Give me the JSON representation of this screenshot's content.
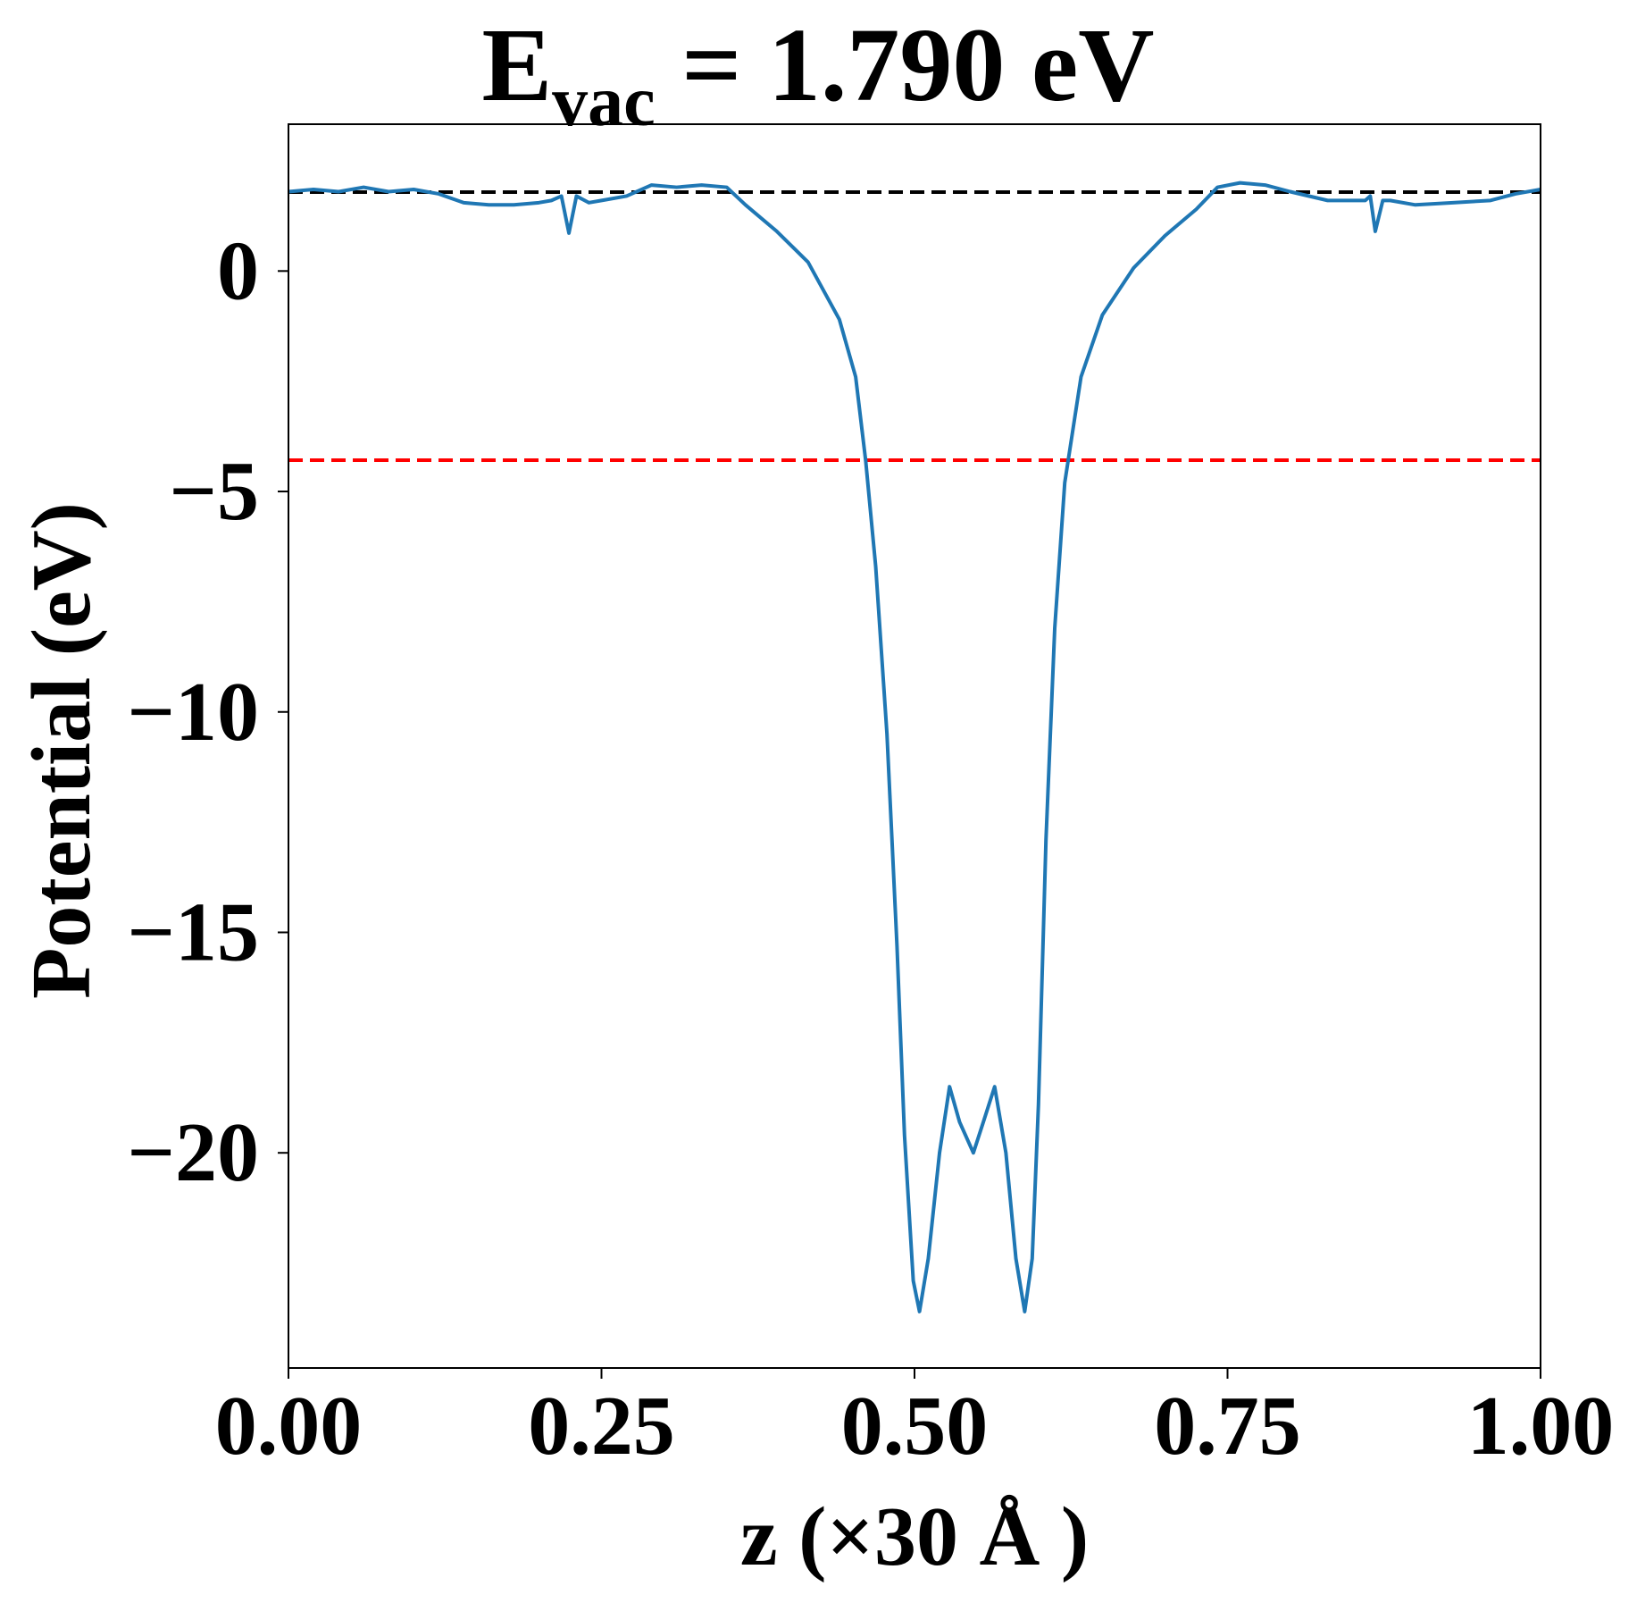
{
  "chart_data": {
    "type": "line",
    "title_parts": [
      "E",
      "vac",
      " = 1.790 eV"
    ],
    "xlabel": "z (×30 Å )",
    "ylabel": "Potential (eV)",
    "x": [
      0,
      0.02,
      0.04,
      0.06,
      0.08,
      0.1,
      0.12,
      0.14,
      0.16,
      0.18,
      0.2,
      0.21,
      0.218,
      0.224,
      0.23,
      0.24,
      0.25,
      0.27,
      0.29,
      0.31,
      0.33,
      0.35,
      0.365,
      0.39,
      0.415,
      0.44,
      0.453,
      0.461,
      0.469,
      0.478,
      0.486,
      0.492,
      0.499,
      0.504,
      0.511,
      0.52,
      0.528,
      0.536,
      0.547,
      0.555,
      0.564,
      0.573,
      0.581,
      0.588,
      0.594,
      0.599,
      0.605,
      0.612,
      0.62,
      0.633,
      0.65,
      0.675,
      0.7,
      0.725,
      0.742,
      0.76,
      0.78,
      0.8,
      0.83,
      0.86,
      0.864,
      0.868,
      0.874,
      0.88,
      0.9,
      0.93,
      0.96,
      0.98,
      1.0
    ],
    "series": [
      {
        "color": "#1f77b4",
        "values": [
          1.8,
          1.85,
          1.8,
          1.9,
          1.8,
          1.85,
          1.75,
          1.55,
          1.5,
          1.5,
          1.55,
          1.6,
          1.7,
          0.86,
          1.7,
          1.55,
          1.6,
          1.7,
          1.95,
          1.9,
          1.95,
          1.9,
          1.5,
          0.9,
          0.2,
          -1.1,
          -2.4,
          -4.3,
          -6.7,
          -10.5,
          -15.3,
          -19.6,
          -22.9,
          -23.6,
          -22.4,
          -20.0,
          -18.5,
          -19.3,
          -20.0,
          -19.3,
          -18.5,
          -20.0,
          -22.4,
          -23.6,
          -22.4,
          -18.9,
          -12.9,
          -8.1,
          -4.8,
          -2.4,
          -1.0,
          0.07,
          0.8,
          1.4,
          1.9,
          2.0,
          1.95,
          1.8,
          1.6,
          1.6,
          1.7,
          0.9,
          1.6,
          1.6,
          1.5,
          1.55,
          1.6,
          1.75,
          1.85
        ]
      }
    ],
    "hlines": [
      {
        "value": 1.79,
        "color": "#000000"
      },
      {
        "value": -4.29,
        "color": "#ff0000"
      }
    ],
    "xlim": [
      0,
      1
    ],
    "ylim": [
      -24.88,
      3.33
    ],
    "xticks": [
      {
        "value": 0,
        "label": "0.00"
      },
      {
        "value": 0.25,
        "label": "0.25"
      },
      {
        "value": 0.5,
        "label": "0.50"
      },
      {
        "value": 0.75,
        "label": "0.75"
      },
      {
        "value": 1,
        "label": "1.00"
      }
    ],
    "yticks": [
      {
        "value": 0,
        "label": "0"
      },
      {
        "value": -5,
        "label": "−5"
      },
      {
        "value": -10,
        "label": "−10"
      },
      {
        "value": -15,
        "label": "−15"
      },
      {
        "value": -20,
        "label": "−20"
      }
    ]
  }
}
